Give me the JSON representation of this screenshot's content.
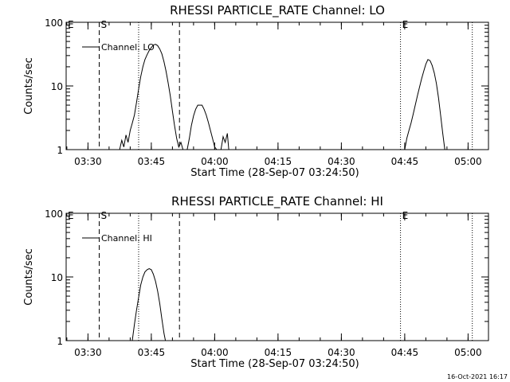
{
  "footer": {
    "timestamp": "16-Oct-2021 16:17"
  },
  "chart_data": [
    {
      "type": "line",
      "title": "RHESSI PARTICLE_RATE Channel: LO",
      "xlabel": "Start Time (28-Sep-07 03:24:50)",
      "ylabel": "Counts/sec",
      "yscale": "log",
      "ylim": [
        1,
        100
      ],
      "xlim": [
        "03:24:50",
        "05:04:50"
      ],
      "xticks": [
        "03:30",
        "03:45",
        "04:00",
        "04:15",
        "04:30",
        "04:45",
        "05:00"
      ],
      "yticks": [
        "1",
        "10",
        "100"
      ],
      "legend": {
        "position": "top-left",
        "entries": [
          "Channel: LO"
        ]
      },
      "markers": [
        {
          "label": "E",
          "time": "03:24:50",
          "style": "dotted"
        },
        {
          "label": "S",
          "time": "03:32:40",
          "style": "dashed"
        },
        {
          "label": "",
          "time": "03:42:00",
          "style": "dotted"
        },
        {
          "label": "",
          "time": "03:51:40",
          "style": "dashed"
        },
        {
          "label": "E",
          "time": "04:44:00",
          "style": "dotted"
        },
        {
          "label": "",
          "time": "05:01:00",
          "style": "dotted"
        }
      ],
      "series": [
        {
          "name": "Channel: LO",
          "segments": [
            [
              [
                "03:37:30",
                1.0
              ],
              [
                "03:38:00",
                1.4
              ],
              [
                "03:38:30",
                1.1
              ],
              [
                "03:39:00",
                1.7
              ],
              [
                "03:39:30",
                1.3
              ],
              [
                "03:40:00",
                2.0
              ],
              [
                "03:40:30",
                2.6
              ],
              [
                "03:41:00",
                3.5
              ],
              [
                "03:41:30",
                5.5
              ],
              [
                "03:42:00",
                9.0
              ],
              [
                "03:42:30",
                14
              ],
              [
                "03:43:00",
                20
              ],
              [
                "03:43:30",
                26
              ],
              [
                "03:44:00",
                31
              ],
              [
                "03:44:30",
                36
              ],
              [
                "03:45:00",
                40
              ],
              [
                "03:45:30",
                44
              ],
              [
                "03:46:00",
                45
              ],
              [
                "03:46:30",
                43
              ],
              [
                "03:47:00",
                38
              ],
              [
                "03:47:30",
                32
              ],
              [
                "03:48:00",
                24
              ],
              [
                "03:48:30",
                17
              ],
              [
                "03:49:00",
                11
              ],
              [
                "03:49:30",
                7
              ],
              [
                "03:50:00",
                4.0
              ],
              [
                "03:50:30",
                2.4
              ],
              [
                "03:51:00",
                1.5
              ],
              [
                "03:51:30",
                1.1
              ],
              [
                "03:52:00",
                1.3
              ],
              [
                "03:52:30",
                1.0
              ]
            ],
            [
              [
                "03:53:30",
                1.0
              ],
              [
                "03:54:00",
                1.5
              ],
              [
                "03:54:30",
                2.4
              ],
              [
                "03:55:00",
                3.4
              ],
              [
                "03:55:30",
                4.3
              ],
              [
                "03:56:00",
                5.0
              ],
              [
                "03:56:30",
                5.0
              ],
              [
                "03:57:00",
                5.0
              ],
              [
                "03:57:30",
                4.3
              ],
              [
                "03:58:00",
                3.5
              ],
              [
                "03:58:30",
                2.7
              ],
              [
                "03:59:00",
                2.0
              ],
              [
                "03:59:30",
                1.5
              ],
              [
                "04:00:00",
                1.1
              ],
              [
                "04:00:30",
                1.0
              ]
            ],
            [
              [
                "04:01:30",
                1.0
              ],
              [
                "04:02:00",
                1.6
              ],
              [
                "04:02:30",
                1.3
              ],
              [
                "04:03:00",
                1.8
              ],
              [
                "04:03:20",
                1.0
              ]
            ],
            [
              [
                "04:45:00",
                1.0
              ],
              [
                "04:45:30",
                1.5
              ],
              [
                "04:46:00",
                2.0
              ],
              [
                "04:46:30",
                2.6
              ],
              [
                "04:47:00",
                3.6
              ],
              [
                "04:47:30",
                5.0
              ],
              [
                "04:48:00",
                7.0
              ],
              [
                "04:48:30",
                9.5
              ],
              [
                "04:49:00",
                13
              ],
              [
                "04:49:30",
                17
              ],
              [
                "04:50:00",
                22
              ],
              [
                "04:50:30",
                26
              ],
              [
                "04:51:00",
                25
              ],
              [
                "04:51:30",
                21
              ],
              [
                "04:52:00",
                16
              ],
              [
                "04:52:30",
                11
              ],
              [
                "04:53:00",
                6.5
              ],
              [
                "04:53:30",
                3.5
              ],
              [
                "04:54:00",
                1.8
              ],
              [
                "04:54:30",
                1.0
              ]
            ]
          ]
        }
      ]
    },
    {
      "type": "line",
      "title": "RHESSI PARTICLE_RATE Channel: HI",
      "xlabel": "Start Time (28-Sep-07 03:24:50)",
      "ylabel": "Counts/sec",
      "yscale": "log",
      "ylim": [
        1,
        100
      ],
      "xlim": [
        "03:24:50",
        "05:04:50"
      ],
      "xticks": [
        "03:30",
        "03:45",
        "04:00",
        "04:15",
        "04:30",
        "04:45",
        "05:00"
      ],
      "yticks": [
        "1",
        "10",
        "100"
      ],
      "legend": {
        "position": "top-left",
        "entries": [
          "Channel: HI"
        ]
      },
      "markers": [
        {
          "label": "E",
          "time": "03:24:50",
          "style": "dotted"
        },
        {
          "label": "S",
          "time": "03:32:40",
          "style": "dashed"
        },
        {
          "label": "",
          "time": "03:42:00",
          "style": "dotted"
        },
        {
          "label": "",
          "time": "03:51:40",
          "style": "dashed"
        },
        {
          "label": "E",
          "time": "04:44:00",
          "style": "dotted"
        },
        {
          "label": "",
          "time": "05:01:00",
          "style": "dotted"
        }
      ],
      "series": [
        {
          "name": "Channel: HI",
          "segments": [
            [
              [
                "03:40:30",
                1.0
              ],
              [
                "03:41:00",
                1.8
              ],
              [
                "03:41:30",
                3.0
              ],
              [
                "03:42:00",
                4.8
              ],
              [
                "03:42:30",
                7.5
              ],
              [
                "03:43:00",
                10
              ],
              [
                "03:43:30",
                12
              ],
              [
                "03:44:00",
                13
              ],
              [
                "03:44:30",
                13.5
              ],
              [
                "03:45:00",
                13
              ],
              [
                "03:45:30",
                11
              ],
              [
                "03:46:00",
                8.5
              ],
              [
                "03:46:30",
                6
              ],
              [
                "03:47:00",
                3.8
              ],
              [
                "03:47:30",
                2.2
              ],
              [
                "03:48:00",
                1.3
              ],
              [
                "03:48:20",
                1.0
              ]
            ]
          ]
        }
      ]
    }
  ]
}
